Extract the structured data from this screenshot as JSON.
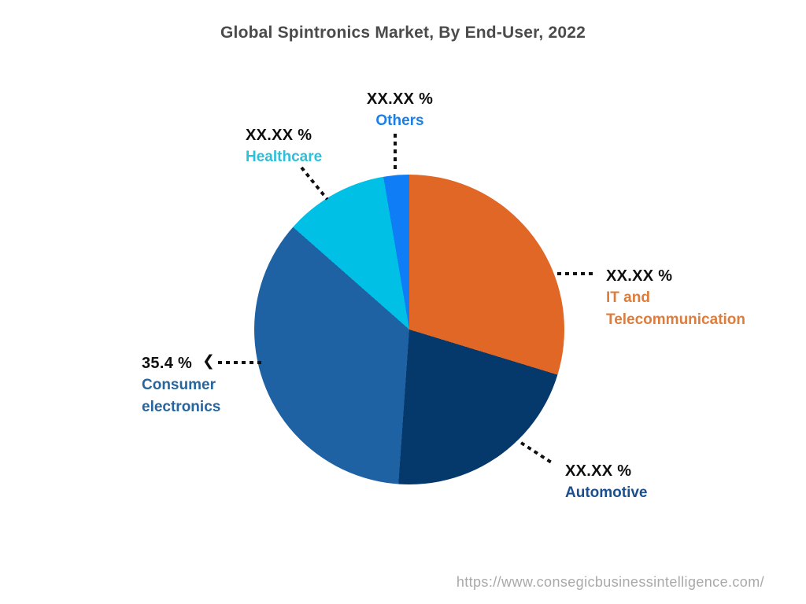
{
  "title": "Global Spintronics Market, By End-User, 2022",
  "watermark": "https://www.consegicbusinessintelligence.com/",
  "chart_data": {
    "type": "pie",
    "title": "Global Spintronics Market, By End-User, 2022",
    "rotation": "clockwise-from-top",
    "legend_position": "callout-labels",
    "segments": [
      {
        "label": "IT and Telecommunication",
        "value_label": "XX.XX %",
        "percent_est": 29.7,
        "start_deg": 0,
        "end_deg": 107,
        "color": "#E16727"
      },
      {
        "label": "Automotive",
        "value_label": "XX.XX %",
        "percent_est": 21.4,
        "start_deg": 107,
        "end_deg": 184,
        "color": "#05386B"
      },
      {
        "label": "Consumer electronics",
        "value_label": "35.4 %",
        "percent_est": 35.4,
        "start_deg": 184,
        "end_deg": 311.4,
        "color": "#1E62A4"
      },
      {
        "label": "Healthcare",
        "value_label": "XX.XX %",
        "percent_est": 10.8,
        "start_deg": 311.4,
        "end_deg": 350.4,
        "color": "#00C0E5"
      },
      {
        "label": "Others",
        "value_label": "XX.XX %",
        "percent_est": 2.7,
        "start_deg": 350.4,
        "end_deg": 360,
        "color": "#0F7DF6"
      }
    ]
  },
  "callouts": {
    "others": {
      "value": "XX.XX %",
      "name": "Others",
      "color": "#1A80E8"
    },
    "healthcare": {
      "value": "XX.XX %",
      "name": "Healthcare",
      "color": "#2BC0DB"
    },
    "it_telecom": {
      "value": "XX.XX %",
      "name_line1": "IT and",
      "name_line2": "Telecommunication",
      "color": "#DB7D3F"
    },
    "automotive": {
      "value": "XX.XX %",
      "name": "Automotive",
      "color": "#1C4F8E"
    },
    "consumer_electronics": {
      "value": "35.4 %",
      "name_line1": "Consumer",
      "name_line2": "electronics",
      "color": "#27659F"
    }
  },
  "icons": {
    "consumer_arrow": "❮"
  }
}
